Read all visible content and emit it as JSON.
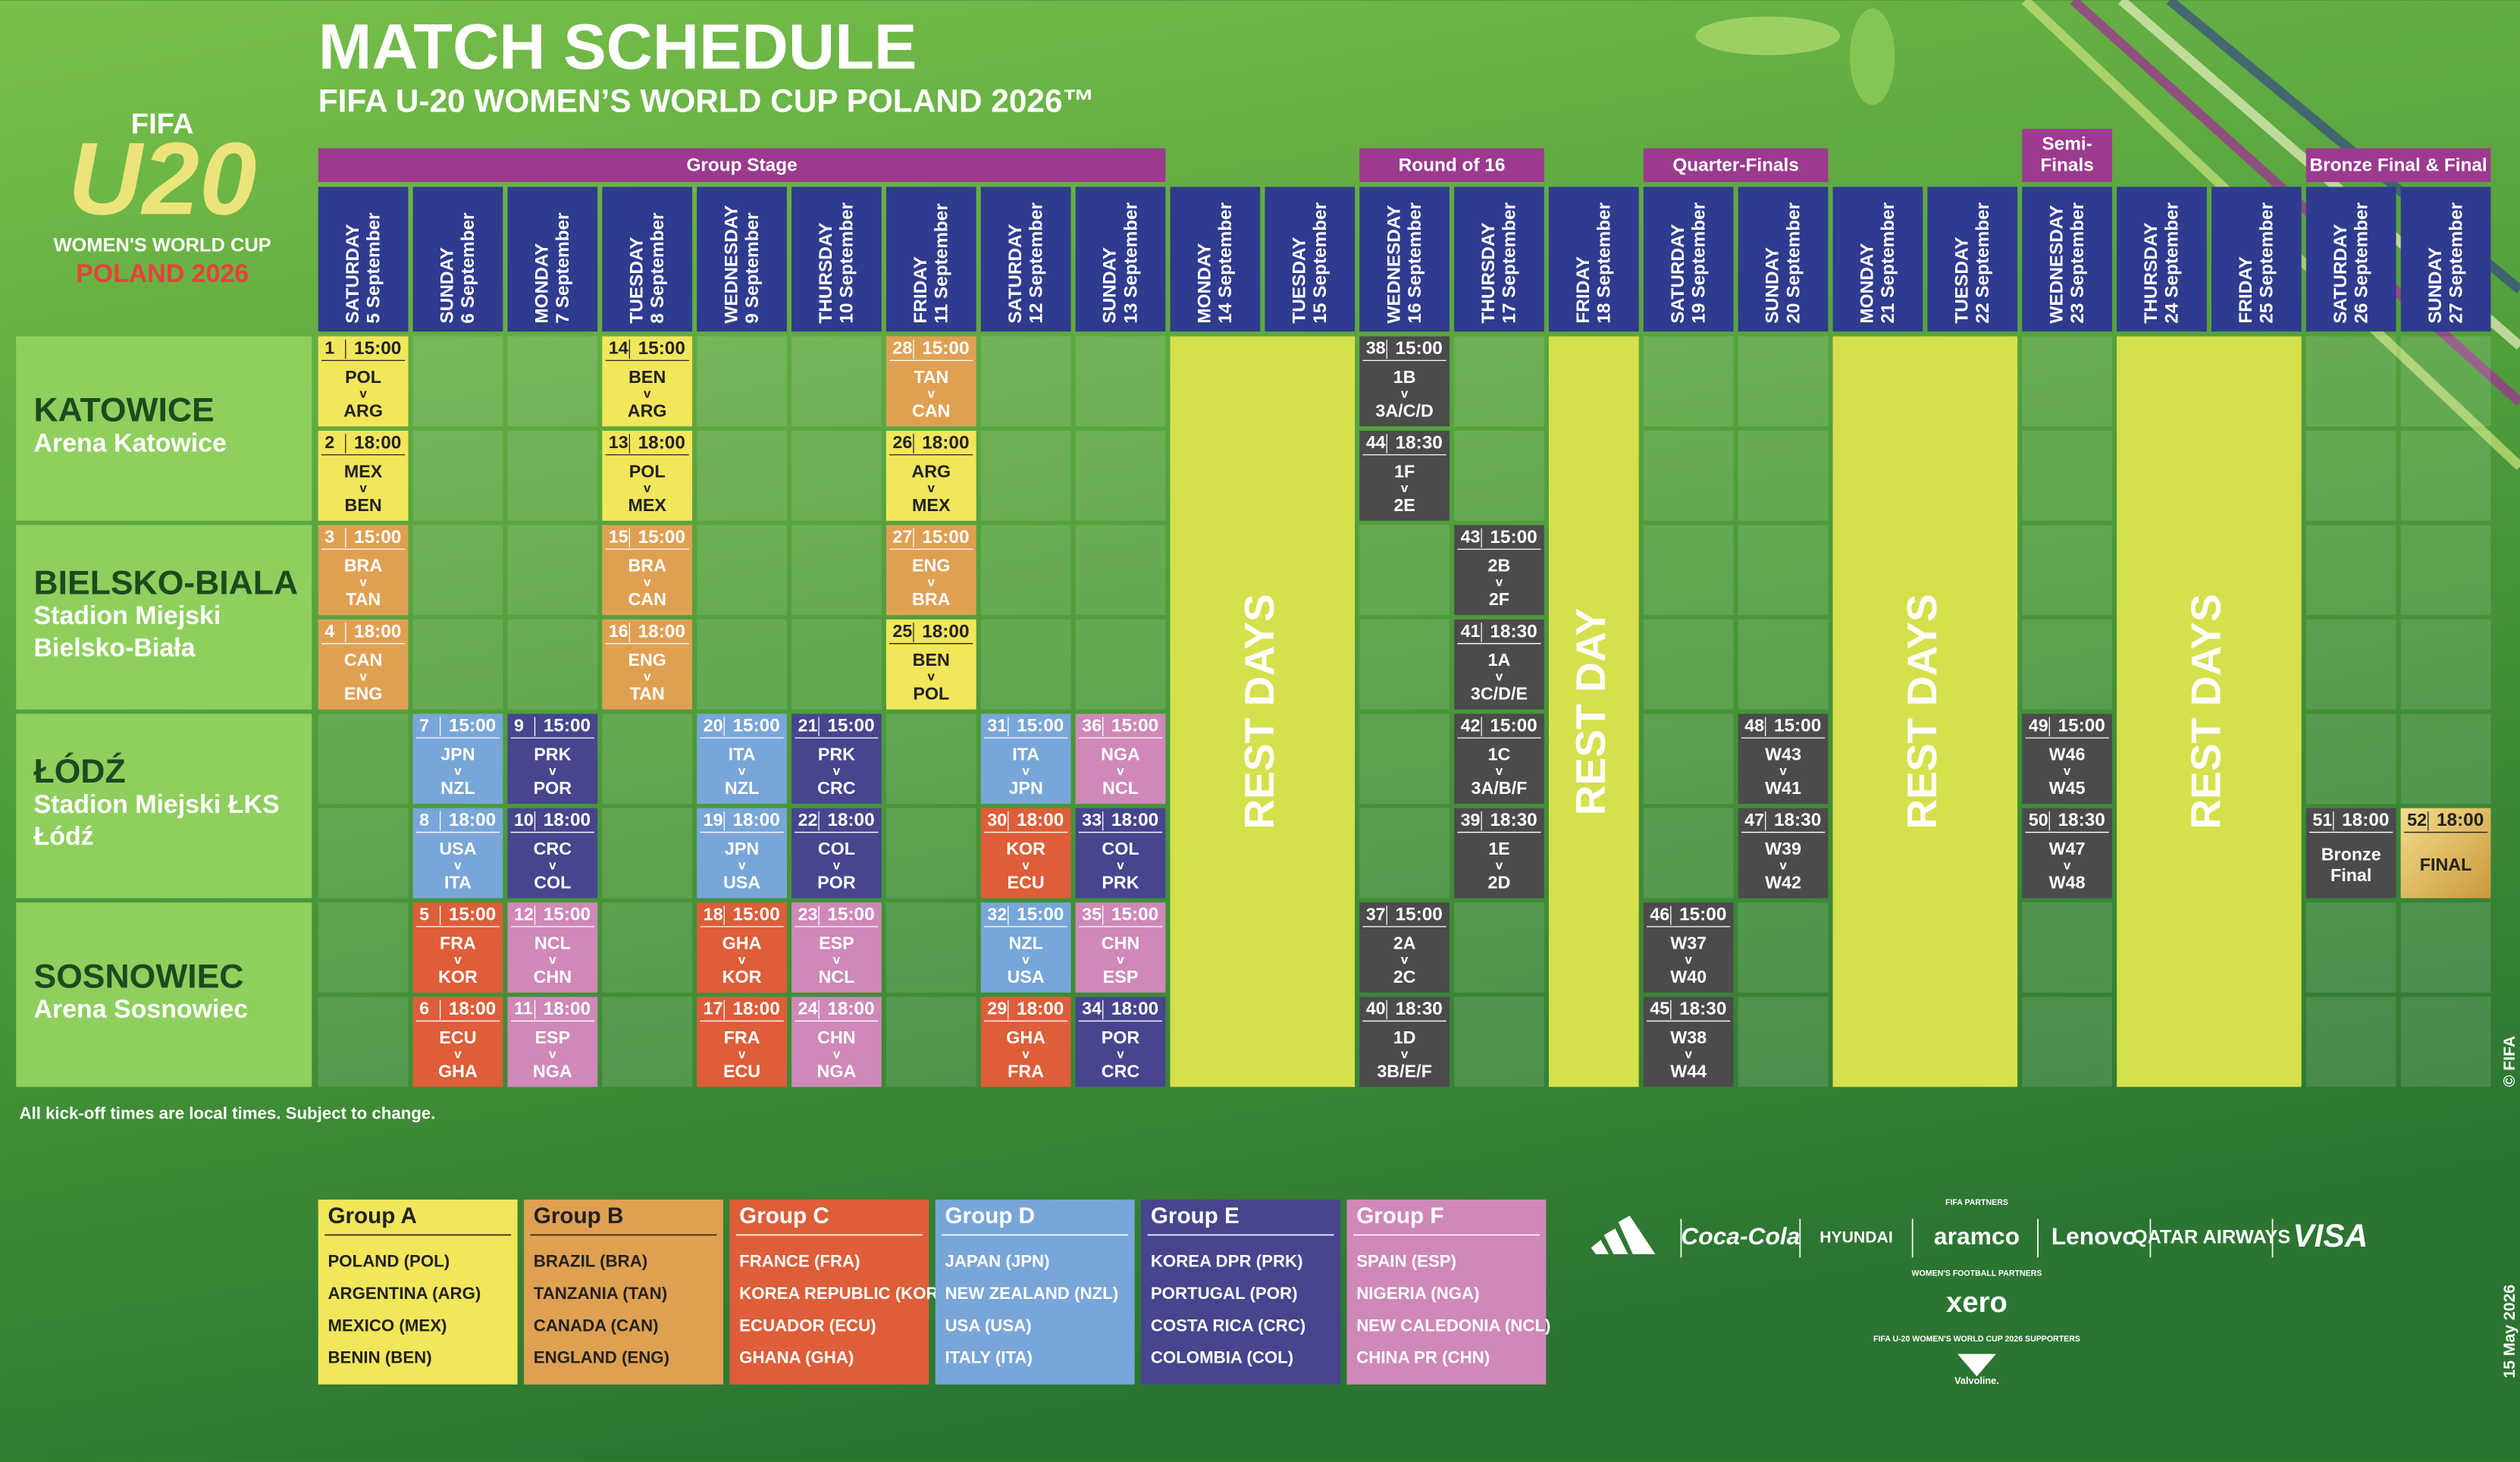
{
  "header": {
    "title": "MATCH SCHEDULE",
    "subtitle": "FIFA U-20 WOMEN’S WORLD CUP POLAND 2026™"
  },
  "logo": {
    "fifa": "FIFA",
    "mark": "U20",
    "line1": "WOMEN'S WORLD CUP",
    "line2": "POLAND 2026"
  },
  "stages": [
    {
      "lines": [
        "Group Stage"
      ]
    },
    {
      "lines": [
        "Round of 16"
      ]
    },
    {
      "lines": [
        "Quarter-Finals"
      ]
    },
    {
      "lines": [
        "Semi-",
        "Finals"
      ]
    },
    {
      "lines": [
        "Bronze Final & Final"
      ]
    }
  ],
  "days": [
    {
      "weekday": "SATURDAY",
      "date": "5 September"
    },
    {
      "weekday": "SUNDAY",
      "date": "6 September"
    },
    {
      "weekday": "MONDAY",
      "date": "7 September"
    },
    {
      "weekday": "TUESDAY",
      "date": "8 September"
    },
    {
      "weekday": "WEDNESDAY",
      "date": "9 September"
    },
    {
      "weekday": "THURSDAY",
      "date": "10 September"
    },
    {
      "weekday": "FRIDAY",
      "date": "11 September"
    },
    {
      "weekday": "SATURDAY",
      "date": "12 September"
    },
    {
      "weekday": "SUNDAY",
      "date": "13 September"
    },
    {
      "weekday": "MONDAY",
      "date": "14 September"
    },
    {
      "weekday": "TUESDAY",
      "date": "15 September"
    },
    {
      "weekday": "WEDNESDAY",
      "date": "16 September"
    },
    {
      "weekday": "THURSDAY",
      "date": "17 September"
    },
    {
      "weekday": "FRIDAY",
      "date": "18 September"
    },
    {
      "weekday": "SATURDAY",
      "date": "19 September"
    },
    {
      "weekday": "SUNDAY",
      "date": "20 September"
    },
    {
      "weekday": "MONDAY",
      "date": "21 September"
    },
    {
      "weekday": "TUESDAY",
      "date": "22 September"
    },
    {
      "weekday": "WEDNESDAY",
      "date": "23 September"
    },
    {
      "weekday": "THURSDAY",
      "date": "24 September"
    },
    {
      "weekday": "FRIDAY",
      "date": "25 September"
    },
    {
      "weekday": "SATURDAY",
      "date": "26 September"
    },
    {
      "weekday": "SUNDAY",
      "date": "27 September"
    }
  ],
  "venues": [
    {
      "city": "KATOWICE",
      "stadium": [
        "Arena Katowice"
      ]
    },
    {
      "city": "BIELSKO-BIALA",
      "stadium": [
        "Stadion Miejski",
        "Bielsko-Biała"
      ]
    },
    {
      "city": "ŁÓDŹ",
      "stadium": [
        "Stadion Miejski ŁKS",
        "Łódź"
      ]
    },
    {
      "city": "SOSNOWIEC",
      "stadium": [
        "Arena Sosnowiec"
      ]
    }
  ],
  "versus": "v",
  "matches": [
    {
      "num": 1,
      "time": "15:00",
      "home": "POL",
      "away": "ARG"
    },
    {
      "num": 2,
      "time": "18:00",
      "home": "MEX",
      "away": "BEN"
    },
    {
      "num": 3,
      "time": "15:00",
      "home": "BRA",
      "away": "TAN"
    },
    {
      "num": 4,
      "time": "18:00",
      "home": "CAN",
      "away": "ENG"
    },
    {
      "num": 7,
      "time": "15:00",
      "home": "JPN",
      "away": "NZL"
    },
    {
      "num": 8,
      "time": "18:00",
      "home": "USA",
      "away": "ITA"
    },
    {
      "num": 5,
      "time": "15:00",
      "home": "FRA",
      "away": "KOR"
    },
    {
      "num": 6,
      "time": "18:00",
      "home": "ECU",
      "away": "GHA"
    },
    {
      "num": 9,
      "time": "15:00",
      "home": "PRK",
      "away": "POR"
    },
    {
      "num": 10,
      "time": "18:00",
      "home": "CRC",
      "away": "COL"
    },
    {
      "num": 12,
      "time": "15:00",
      "home": "NCL",
      "away": "CHN"
    },
    {
      "num": 11,
      "time": "18:00",
      "home": "ESP",
      "away": "NGA"
    },
    {
      "num": 14,
      "time": "15:00",
      "home": "BEN",
      "away": "ARG"
    },
    {
      "num": 13,
      "time": "18:00",
      "home": "POL",
      "away": "MEX"
    },
    {
      "num": 15,
      "time": "15:00",
      "home": "BRA",
      "away": "CAN"
    },
    {
      "num": 16,
      "time": "18:00",
      "home": "ENG",
      "away": "TAN"
    },
    {
      "num": 20,
      "time": "15:00",
      "home": "ITA",
      "away": "NZL"
    },
    {
      "num": 19,
      "time": "18:00",
      "home": "JPN",
      "away": "USA"
    },
    {
      "num": 18,
      "time": "15:00",
      "home": "GHA",
      "away": "KOR"
    },
    {
      "num": 17,
      "time": "18:00",
      "home": "FRA",
      "away": "ECU"
    },
    {
      "num": 21,
      "time": "15:00",
      "home": "PRK",
      "away": "CRC"
    },
    {
      "num": 22,
      "time": "18:00",
      "home": "COL",
      "away": "POR"
    },
    {
      "num": 23,
      "time": "15:00",
      "home": "ESP",
      "away": "NCL"
    },
    {
      "num": 24,
      "time": "18:00",
      "home": "CHN",
      "away": "NGA"
    },
    {
      "num": 28,
      "time": "15:00",
      "home": "TAN",
      "away": "CAN"
    },
    {
      "num": 26,
      "time": "18:00",
      "home": "ARG",
      "away": "MEX"
    },
    {
      "num": 27,
      "time": "15:00",
      "home": "ENG",
      "away": "BRA"
    },
    {
      "num": 25,
      "time": "18:00",
      "home": "BEN",
      "away": "POL"
    },
    {
      "num": 31,
      "time": "15:00",
      "home": "ITA",
      "away": "JPN"
    },
    {
      "num": 30,
      "time": "18:00",
      "home": "KOR",
      "away": "ECU"
    },
    {
      "num": 32,
      "time": "15:00",
      "home": "NZL",
      "away": "USA"
    },
    {
      "num": 29,
      "time": "18:00",
      "home": "GHA",
      "away": "FRA"
    },
    {
      "num": 36,
      "time": "15:00",
      "home": "NGA",
      "away": "NCL"
    },
    {
      "num": 33,
      "time": "18:00",
      "home": "COL",
      "away": "PRK"
    },
    {
      "num": 35,
      "time": "15:00",
      "home": "CHN",
      "away": "ESP"
    },
    {
      "num": 34,
      "time": "18:00",
      "home": "POR",
      "away": "CRC"
    },
    {
      "num": 38,
      "time": "15:00",
      "home": "1B",
      "away": "3A/C/D"
    },
    {
      "num": 44,
      "time": "18:30",
      "home": "1F",
      "away": "2E"
    },
    {
      "num": 37,
      "time": "15:00",
      "home": "2A",
      "away": "2C"
    },
    {
      "num": 40,
      "time": "18:30",
      "home": "1D",
      "away": "3B/E/F"
    },
    {
      "num": 43,
      "time": "15:00",
      "home": "2B",
      "away": "2F"
    },
    {
      "num": 41,
      "time": "18:30",
      "home": "1A",
      "away": "3C/D/E"
    },
    {
      "num": 42,
      "time": "15:00",
      "home": "1C",
      "away": "3A/B/F"
    },
    {
      "num": 39,
      "time": "18:30",
      "home": "1E",
      "away": "2D"
    },
    {
      "num": 46,
      "time": "15:00",
      "home": "W37",
      "away": "W40"
    },
    {
      "num": 45,
      "time": "18:30",
      "home": "W38",
      "away": "W44"
    },
    {
      "num": 48,
      "time": "15:00",
      "home": "W43",
      "away": "W41"
    },
    {
      "num": 47,
      "time": "18:30",
      "home": "W39",
      "away": "W42"
    },
    {
      "num": 49,
      "time": "15:00",
      "home": "W46",
      "away": "W45"
    },
    {
      "num": 50,
      "time": "18:30",
      "home": "W47",
      "away": "W48"
    },
    {
      "num": 51,
      "time": "18:00",
      "label": [
        "Bronze",
        "Final"
      ]
    },
    {
      "num": 52,
      "time": "18:00",
      "label": [
        "FINAL"
      ]
    }
  ],
  "rest": [
    "REST DAYS",
    "REST DAY",
    "REST DAYS",
    "REST DAYS"
  ],
  "note": "All kick-off times are local times. Subject to change.",
  "groups": [
    {
      "name": "Group A",
      "color": "#f2e65a",
      "teams": [
        "POLAND (POL)",
        "ARGENTINA (ARG)",
        "MEXICO (MEX)",
        "BENIN (BEN)"
      ]
    },
    {
      "name": "Group B",
      "color": "#e0a052",
      "teams": [
        "BRAZIL (BRA)",
        "TANZANIA (TAN)",
        "CANADA (CAN)",
        "ENGLAND (ENG)"
      ]
    },
    {
      "name": "Group C",
      "color": "#dd5e38",
      "teams": [
        "FRANCE (FRA)",
        "KOREA REPUBLIC (KOR)",
        "ECUADOR (ECU)",
        "GHANA (GHA)"
      ]
    },
    {
      "name": "Group D",
      "color": "#78a6d8",
      "teams": [
        "JAPAN (JPN)",
        "NEW ZEALAND (NZL)",
        "USA (USA)",
        "ITALY (ITA)"
      ]
    },
    {
      "name": "Group E",
      "color": "#46458e",
      "teams": [
        "KOREA DPR (PRK)",
        "PORTUGAL (POR)",
        "COSTA RICA (CRC)",
        "COLOMBIA (COL)"
      ]
    },
    {
      "name": "Group F",
      "color": "#cf88b8",
      "teams": [
        "SPAIN (ESP)",
        "NIGERIA (NGA)",
        "NEW CALEDONIA (NCL)",
        "CHINA PR (CHN)"
      ]
    }
  ],
  "sponsors": {
    "partners_title": "FIFA PARTNERS",
    "partners": [
      "Coca-Cola",
      "HYUNDAI",
      "aramco",
      "Lenovo",
      "QATAR AIRWAYS",
      "VISA"
    ],
    "womens_title": "WOMEN'S FOOTBALL PARTNERS",
    "womens": [
      "xero"
    ],
    "supporters_title": "FIFA U-20 WOMEN'S WORLD CUP 2026 SUPPORTERS",
    "supporters": [
      "Valvoline."
    ]
  },
  "copyright": "© FIFA",
  "issued": "15 May 2026"
}
